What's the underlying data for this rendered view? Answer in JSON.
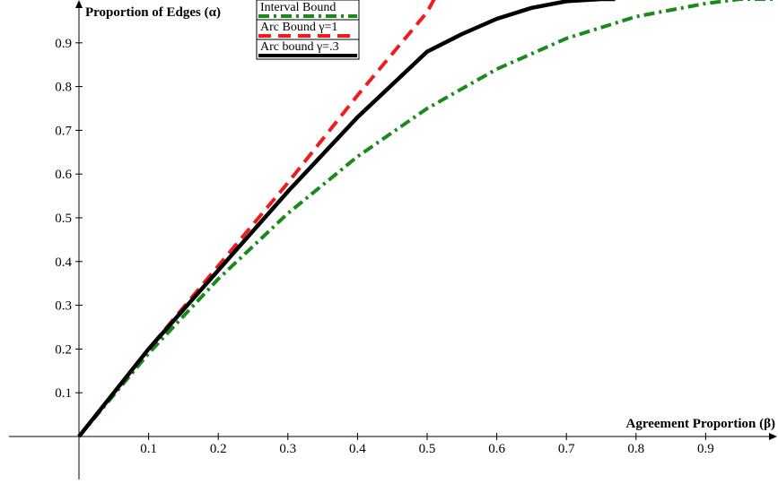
{
  "chart_data": {
    "type": "line",
    "xlabel": "Agreement Proportion (β)",
    "ylabel": "Proportion of Edges (α)",
    "xlim": [
      0,
      1.0
    ],
    "ylim": [
      -0.1,
      1.0
    ],
    "x_ticks": [
      "0.1",
      "0.2",
      "0.3",
      "0.4",
      "0.5",
      "0.6",
      "0.7",
      "0.8",
      "0.9"
    ],
    "y_ticks": [
      "0.1",
      "0.2",
      "0.3",
      "0.4",
      "0.5",
      "0.6",
      "0.7",
      "0.8",
      "0.9"
    ],
    "grid": false,
    "legend_position": "top-left",
    "series": [
      {
        "name": "Interval Bound",
        "color": "#1a8a1a",
        "style": "dashdot",
        "x": [
          0,
          0.1,
          0.2,
          0.3,
          0.4,
          0.5,
          0.6,
          0.7,
          0.8,
          0.9,
          0.95,
          1.0
        ],
        "y": [
          0,
          0.19,
          0.36,
          0.51,
          0.64,
          0.75,
          0.84,
          0.91,
          0.96,
          0.99,
          1.0,
          1.0
        ]
      },
      {
        "name": "Arc Bound γ=1",
        "color": "#ee1c1c",
        "style": "dashed",
        "x": [
          0,
          0.1,
          0.2,
          0.3,
          0.4,
          0.5,
          0.51
        ],
        "y": [
          0,
          0.2,
          0.39,
          0.58,
          0.78,
          0.97,
          1.0
        ]
      },
      {
        "name": "Arc bound γ=.3",
        "color": "#000000",
        "style": "solid",
        "x": [
          0,
          0.1,
          0.2,
          0.3,
          0.4,
          0.5,
          0.55,
          0.6,
          0.65,
          0.7,
          0.75,
          0.77
        ],
        "y": [
          0,
          0.2,
          0.38,
          0.56,
          0.73,
          0.88,
          0.92,
          0.955,
          0.98,
          0.995,
          1.0,
          1.0
        ]
      }
    ]
  }
}
